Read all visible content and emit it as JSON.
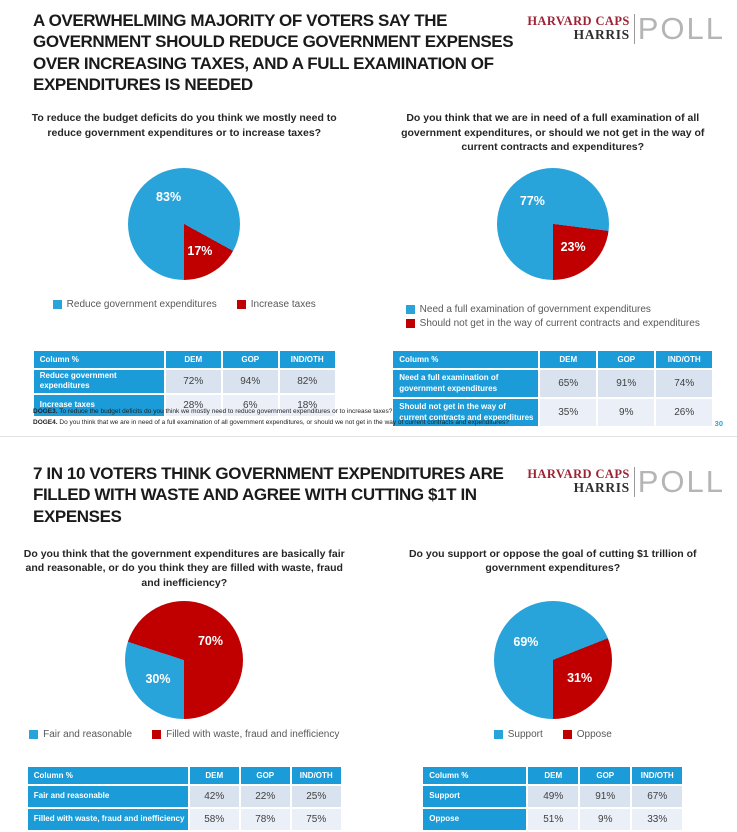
{
  "brand": {
    "line1": "HARVARD CAPS",
    "line2": "HARRIS",
    "poll": "POLL"
  },
  "colors": {
    "pie_blue": "#29a4da",
    "pie_red": "#c00000",
    "table_header_bg": "#1b9cd8",
    "row_band_1": "#d9e3ef",
    "row_band_2": "#ebf0f8",
    "brand_red": "#9d2235",
    "brand_gray": "#b5b5b5",
    "page_number_blue": "#2ea3db"
  },
  "slides": [
    {
      "title": "A OVERWHELMING MAJORITY OF VOTERS SAY THE GOVERNMENT SHOULD REDUCE GOVERNMENT EXPENSES OVER INCREASING TAXES, AND A FULL EXAMINATION OF EXPENDITURES IS NEEDED",
      "footnotes": [
        {
          "code": "DOGE3.",
          "text": "To reduce the budget deficits do you think we mostly need to reduce government expenditures or to increase taxes?"
        },
        {
          "code": "DOGE4.",
          "text": "Do you think that we are in need of a full examination of all government expenditures, or should we not get in the way of current contracts and expenditures?"
        }
      ],
      "page_number": "30"
    },
    {
      "title": "7 IN 10 VOTERS THINK GOVERNMENT EXPENDITURES ARE FILLED WITH WASTE AND AGREE WITH CUTTING $1T IN EXPENSES"
    }
  ],
  "chart_data": [
    {
      "type": "pie",
      "question": "To reduce the budget deficits do you think we mostly need to reduce government expenditures or to increase taxes?",
      "legend_position": "bottom-row",
      "slices": [
        {
          "label": "Reduce government expenditures",
          "value": 83,
          "pct": "83%",
          "color": "#29a4da"
        },
        {
          "label": "Increase taxes",
          "value": 17,
          "pct": "17%",
          "color": "#c00000"
        }
      ],
      "table": {
        "header": [
          "Column %",
          "DEM",
          "GOP",
          "IND/OTH"
        ],
        "rows": [
          {
            "label": "Reduce government expenditures",
            "values": [
              "72%",
              "94%",
              "82%"
            ]
          },
          {
            "label": "Increase taxes",
            "values": [
              "28%",
              "6%",
              "18%"
            ]
          }
        ]
      }
    },
    {
      "type": "pie",
      "question": "Do you think that we are in need of a full examination of all government expenditures, or should we not get in the way of current contracts and expenditures?",
      "legend_position": "bottom-column",
      "slices": [
        {
          "label": "Need a full examination of government expenditures",
          "value": 77,
          "pct": "77%",
          "color": "#29a4da"
        },
        {
          "label": "Should not get in the way of current contracts and expenditures",
          "value": 23,
          "pct": "23%",
          "color": "#c00000"
        }
      ],
      "table": {
        "header": [
          "Column %",
          "DEM",
          "GOP",
          "IND/OTH"
        ],
        "rows": [
          {
            "label": "Need a full examination of government expenditures",
            "values": [
              "65%",
              "91%",
              "74%"
            ]
          },
          {
            "label": "Should not get in the way of current contracts and expenditures",
            "values": [
              "35%",
              "9%",
              "26%"
            ]
          }
        ]
      }
    },
    {
      "type": "pie",
      "question": "Do you think that the government expenditures are basically fair and reasonable, or do you think they are filled with waste, fraud and inefficiency?",
      "legend_position": "bottom-row",
      "slices": [
        {
          "label": "Fair and reasonable",
          "value": 30,
          "pct": "30%",
          "color": "#29a4da"
        },
        {
          "label": "Filled with waste, fraud and inefficiency",
          "value": 70,
          "pct": "70%",
          "color": "#c00000"
        }
      ],
      "table": {
        "header": [
          "Column %",
          "DEM",
          "GOP",
          "IND/OTH"
        ],
        "rows": [
          {
            "label": "Fair and reasonable",
            "values": [
              "42%",
              "22%",
              "25%"
            ]
          },
          {
            "label": "Filled with waste, fraud and inefficiency",
            "values": [
              "58%",
              "78%",
              "75%"
            ]
          }
        ]
      }
    },
    {
      "type": "pie",
      "question": "Do you support or oppose the goal of cutting $1 trillion of government expenditures?",
      "legend_position": "bottom-row",
      "slices": [
        {
          "label": "Support",
          "value": 69,
          "pct": "69%",
          "color": "#29a4da"
        },
        {
          "label": "Oppose",
          "value": 31,
          "pct": "31%",
          "color": "#c00000"
        }
      ],
      "table": {
        "header": [
          "Column %",
          "DEM",
          "GOP",
          "IND/OTH"
        ],
        "rows": [
          {
            "label": "Support",
            "values": [
              "49%",
              "91%",
              "67%"
            ]
          },
          {
            "label": "Oppose",
            "values": [
              "51%",
              "9%",
              "33%"
            ]
          }
        ]
      }
    }
  ]
}
